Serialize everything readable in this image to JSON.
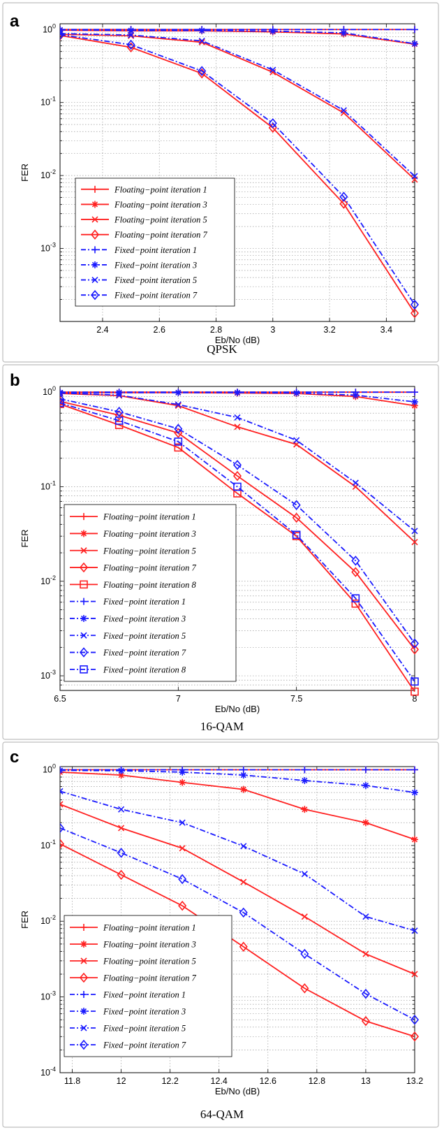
{
  "chart_data": [
    {
      "panel": "a",
      "caption": "QPSK",
      "type": "line",
      "xlabel": "Eb/No (dB)",
      "ylabel": "FER",
      "xscale": "linear",
      "yscale": "log",
      "xlim": [
        2.25,
        3.5
      ],
      "ylim": [
        0.0001,
        1.2
      ],
      "xticks": [
        "2.4",
        "2.6",
        "2.8",
        "3",
        "3.2",
        "3.4"
      ],
      "xtick_values": [
        2.4,
        2.6,
        2.8,
        3.0,
        3.2,
        3.4
      ],
      "yticks": [
        {
          "base": "10",
          "exp": "0",
          "value": 1
        },
        {
          "base": "10",
          "exp": "-1",
          "value": 0.1
        },
        {
          "base": "10",
          "exp": "-2",
          "value": 0.01
        },
        {
          "base": "10",
          "exp": "-3",
          "value": 0.001
        }
      ],
      "grid": true,
      "legend_position": "bottom-left",
      "series": [
        {
          "name": "Floating−point iteration 1",
          "color": "#ff2020",
          "style": "solid",
          "marker": "plus",
          "x": [
            2.25,
            2.5,
            2.75,
            3.0,
            3.25,
            3.5
          ],
          "y": [
            1.0,
            1.0,
            1.0,
            1.0,
            1.0,
            1.0
          ]
        },
        {
          "name": "Floating−point iteration 3",
          "color": "#ff2020",
          "style": "solid",
          "marker": "star",
          "x": [
            2.25,
            2.5,
            2.75,
            3.0,
            3.25,
            3.5
          ],
          "y": [
            0.98,
            0.96,
            0.96,
            0.93,
            0.87,
            0.63
          ]
        },
        {
          "name": "Floating−point iteration 5",
          "color": "#ff2020",
          "style": "solid",
          "marker": "x",
          "x": [
            2.25,
            2.5,
            2.75,
            3.0,
            3.25,
            3.5
          ],
          "y": [
            0.86,
            0.82,
            0.67,
            0.26,
            0.072,
            0.0088
          ]
        },
        {
          "name": "Floating−point iteration 7",
          "color": "#ff2020",
          "style": "solid",
          "marker": "diamond",
          "x": [
            2.25,
            2.5,
            2.75,
            3.0,
            3.25,
            3.5
          ],
          "y": [
            0.83,
            0.57,
            0.25,
            0.045,
            0.0041,
            0.00013
          ]
        },
        {
          "name": "Fixed−point iteration 1",
          "color": "#1a1aff",
          "style": "dashdot",
          "marker": "plus",
          "x": [
            2.25,
            2.5,
            2.75,
            3.0,
            3.25,
            3.5
          ],
          "y": [
            1.0,
            1.0,
            1.0,
            1.0,
            1.0,
            1.0
          ]
        },
        {
          "name": "Fixed−point iteration 3",
          "color": "#1a1aff",
          "style": "dashdot",
          "marker": "star",
          "x": [
            2.25,
            2.5,
            2.75,
            3.0,
            3.25,
            3.5
          ],
          "y": [
            0.99,
            0.97,
            0.97,
            0.95,
            0.9,
            0.64
          ]
        },
        {
          "name": "Fixed−point iteration 5",
          "color": "#1a1aff",
          "style": "dashdot",
          "marker": "x",
          "x": [
            2.25,
            2.5,
            2.75,
            3.0,
            3.25,
            3.5
          ],
          "y": [
            0.88,
            0.84,
            0.7,
            0.28,
            0.078,
            0.0098
          ]
        },
        {
          "name": "Fixed−point iteration 7",
          "color": "#1a1aff",
          "style": "dashdot",
          "marker": "diamond",
          "x": [
            2.25,
            2.5,
            2.75,
            3.0,
            3.25,
            3.5
          ],
          "y": [
            0.85,
            0.62,
            0.27,
            0.052,
            0.0051,
            0.00017
          ]
        }
      ]
    },
    {
      "panel": "b",
      "caption": "16-QAM",
      "type": "line",
      "xlabel": "Eb/No (dB)",
      "ylabel": "FER",
      "xscale": "linear",
      "yscale": "log",
      "xlim": [
        6.5,
        8.0
      ],
      "ylim": [
        0.0007,
        1.15
      ],
      "xticks": [
        "6.5",
        "7",
        "7.5",
        "8"
      ],
      "xtick_values": [
        6.5,
        7.0,
        7.5,
        8.0
      ],
      "yticks": [
        {
          "base": "10",
          "exp": "0",
          "value": 1
        },
        {
          "base": "10",
          "exp": "-1",
          "value": 0.1
        },
        {
          "base": "10",
          "exp": "-2",
          "value": 0.01
        },
        {
          "base": "10",
          "exp": "-3",
          "value": 0.001
        }
      ],
      "grid": true,
      "legend_position": "bottom-left",
      "series": [
        {
          "name": "Floating−point iteration 1",
          "color": "#ff2020",
          "style": "solid",
          "marker": "plus",
          "x": [
            6.5,
            6.75,
            7.0,
            7.25,
            7.5,
            7.75,
            8.0
          ],
          "y": [
            1.0,
            1.0,
            1.0,
            1.0,
            1.0,
            1.0,
            1.0
          ]
        },
        {
          "name": "Floating−point iteration 3",
          "color": "#ff2020",
          "style": "solid",
          "marker": "star",
          "x": [
            6.5,
            6.75,
            7.0,
            7.25,
            7.5,
            7.75,
            8.0
          ],
          "y": [
            0.99,
            0.99,
            0.99,
            0.98,
            0.97,
            0.9,
            0.72
          ]
        },
        {
          "name": "Floating−point iteration 5",
          "color": "#ff2020",
          "style": "solid",
          "marker": "x",
          "x": [
            6.5,
            6.75,
            7.0,
            7.25,
            7.5,
            7.75,
            8.0
          ],
          "y": [
            0.97,
            0.92,
            0.72,
            0.43,
            0.28,
            0.1,
            0.026
          ]
        },
        {
          "name": "Floating−point iteration 7",
          "color": "#ff2020",
          "style": "solid",
          "marker": "diamond",
          "x": [
            6.5,
            6.75,
            7.0,
            7.25,
            7.5,
            7.75,
            8.0
          ],
          "y": [
            0.8,
            0.57,
            0.37,
            0.13,
            0.047,
            0.0125,
            0.0019
          ]
        },
        {
          "name": "Floating−point iteration 8",
          "color": "#ff2020",
          "style": "solid",
          "marker": "square",
          "x": [
            6.5,
            6.75,
            7.0,
            7.25,
            7.5,
            7.75,
            8.0
          ],
          "y": [
            0.75,
            0.45,
            0.26,
            0.085,
            0.03,
            0.0058,
            0.00068
          ]
        },
        {
          "name": "Fixed−point iteration 1",
          "color": "#1a1aff",
          "style": "dashdot",
          "marker": "plus",
          "x": [
            6.5,
            6.75,
            7.0,
            7.25,
            7.5,
            7.75,
            8.0
          ],
          "y": [
            1.0,
            1.0,
            1.0,
            1.0,
            1.0,
            1.0,
            1.0
          ]
        },
        {
          "name": "Fixed−point iteration 3",
          "color": "#1a1aff",
          "style": "dashdot",
          "marker": "star",
          "x": [
            6.5,
            6.75,
            7.0,
            7.25,
            7.5,
            7.75,
            8.0
          ],
          "y": [
            0.99,
            0.99,
            0.99,
            0.99,
            0.98,
            0.93,
            0.79
          ]
        },
        {
          "name": "Fixed−point iteration 5",
          "color": "#1a1aff",
          "style": "dashdot",
          "marker": "x",
          "x": [
            6.5,
            6.75,
            7.0,
            7.25,
            7.5,
            7.75,
            8.0
          ],
          "y": [
            0.98,
            0.93,
            0.74,
            0.54,
            0.31,
            0.11,
            0.034
          ]
        },
        {
          "name": "Fixed−point iteration 7",
          "color": "#1a1aff",
          "style": "dashdot",
          "marker": "diamond",
          "x": [
            6.5,
            6.75,
            7.0,
            7.25,
            7.5,
            7.75,
            8.0
          ],
          "y": [
            0.85,
            0.62,
            0.41,
            0.17,
            0.064,
            0.0165,
            0.0022
          ]
        },
        {
          "name": "Fixed−point iteration 8",
          "color": "#1a1aff",
          "style": "dashdot",
          "marker": "square",
          "x": [
            6.5,
            6.75,
            7.0,
            7.25,
            7.5,
            7.75,
            8.0
          ],
          "y": [
            0.77,
            0.5,
            0.3,
            0.1,
            0.031,
            0.0066,
            0.00087
          ]
        }
      ]
    },
    {
      "panel": "c",
      "caption": "64-QAM",
      "type": "line",
      "xlabel": "Eb/No (dB)",
      "ylabel": "FER",
      "xscale": "linear",
      "yscale": "log",
      "xlim": [
        11.75,
        13.2
      ],
      "ylim": [
        0.0001,
        1.1
      ],
      "xticks": [
        "11.8",
        "12",
        "12.2",
        "12.4",
        "12.6",
        "12.8",
        "13",
        "13.2"
      ],
      "xtick_values": [
        11.8,
        12.0,
        12.2,
        12.4,
        12.6,
        12.8,
        13.0,
        13.2
      ],
      "yticks": [
        {
          "base": "10",
          "exp": "0",
          "value": 1
        },
        {
          "base": "10",
          "exp": "-1",
          "value": 0.1
        },
        {
          "base": "10",
          "exp": "-2",
          "value": 0.01
        },
        {
          "base": "10",
          "exp": "-3",
          "value": 0.001
        },
        {
          "base": "10",
          "exp": "-4",
          "value": 0.0001
        }
      ],
      "grid": true,
      "legend_position": "bottom-left",
      "series": [
        {
          "name": "Floating−point iteration 1",
          "color": "#ff2020",
          "style": "solid",
          "marker": "plus",
          "x": [
            11.75,
            12.0,
            12.25,
            12.5,
            12.75,
            13.0,
            13.2
          ],
          "y": [
            1.0,
            1.0,
            1.0,
            1.0,
            1.0,
            1.0,
            1.0
          ]
        },
        {
          "name": "Floating−point iteration 3",
          "color": "#ff2020",
          "style": "solid",
          "marker": "star",
          "x": [
            11.75,
            12.0,
            12.25,
            12.5,
            12.75,
            13.0,
            13.2
          ],
          "y": [
            0.93,
            0.85,
            0.68,
            0.55,
            0.3,
            0.2,
            0.12
          ]
        },
        {
          "name": "Floating−point iteration 5",
          "color": "#ff2020",
          "style": "solid",
          "marker": "x",
          "x": [
            11.75,
            12.0,
            12.25,
            12.5,
            12.75,
            13.0,
            13.2
          ],
          "y": [
            0.35,
            0.17,
            0.092,
            0.033,
            0.0115,
            0.0037,
            0.002
          ]
        },
        {
          "name": "Floating−point iteration 7",
          "color": "#ff2020",
          "style": "solid",
          "marker": "diamond",
          "x": [
            11.75,
            12.0,
            12.25,
            12.5,
            12.75,
            13.0,
            13.2
          ],
          "y": [
            0.105,
            0.041,
            0.016,
            0.0046,
            0.0013,
            0.00048,
            0.0003
          ]
        },
        {
          "name": "Fixed−point iteration 1",
          "color": "#1a1aff",
          "style": "dashdot",
          "marker": "plus",
          "x": [
            11.75,
            12.0,
            12.25,
            12.5,
            12.75,
            13.0,
            13.2
          ],
          "y": [
            1.0,
            1.0,
            1.0,
            1.0,
            1.0,
            1.0,
            1.0
          ]
        },
        {
          "name": "Fixed−point iteration 3",
          "color": "#1a1aff",
          "style": "dashdot",
          "marker": "star",
          "x": [
            11.75,
            12.0,
            12.25,
            12.5,
            12.75,
            13.0,
            13.2
          ],
          "y": [
            0.98,
            0.97,
            0.93,
            0.85,
            0.72,
            0.62,
            0.5
          ]
        },
        {
          "name": "Fixed−point iteration 5",
          "color": "#1a1aff",
          "style": "dashdot",
          "marker": "x",
          "x": [
            11.75,
            12.0,
            12.25,
            12.5,
            12.75,
            13.0,
            13.2
          ],
          "y": [
            0.52,
            0.3,
            0.2,
            0.098,
            0.042,
            0.0115,
            0.0075
          ]
        },
        {
          "name": "Fixed−point iteration 7",
          "color": "#1a1aff",
          "style": "dashdot",
          "marker": "diamond",
          "x": [
            11.75,
            12.0,
            12.25,
            12.5,
            12.75,
            13.0,
            13.2
          ],
          "y": [
            0.17,
            0.08,
            0.036,
            0.013,
            0.0037,
            0.0011,
            0.0005
          ]
        }
      ]
    }
  ]
}
